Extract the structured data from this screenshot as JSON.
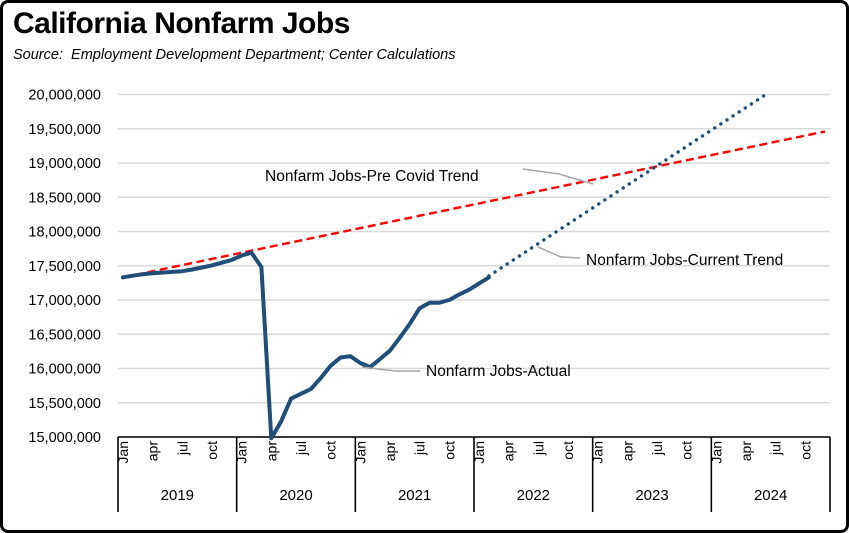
{
  "header": {
    "title": "California Nonfarm Jobs",
    "source": "Source:  Employment Development Department; Center Calculations"
  },
  "colors": {
    "actual_line": "#1F4E79",
    "pre_covid_trend": "#FF0000",
    "current_trend": "#1F4E79",
    "gridline": "#D9D9D9",
    "axis": "#000000",
    "leader_line": "#A6A6A6",
    "background": "#FFFFFF"
  },
  "chart_data": {
    "type": "line",
    "title": "California Nonfarm Jobs",
    "source": "Source:  Employment Development Department; Center Calculations",
    "ylim": [
      15000000,
      20000000
    ],
    "grid": true,
    "y_axis": {
      "ticks": [
        {
          "value": 15000000,
          "label": "15,000,000"
        },
        {
          "value": 15500000,
          "label": "15,500,000"
        },
        {
          "value": 16000000,
          "label": "16,000,000"
        },
        {
          "value": 16500000,
          "label": "16,500,000"
        },
        {
          "value": 17000000,
          "label": "17,000,000"
        },
        {
          "value": 17500000,
          "label": "17,500,000"
        },
        {
          "value": 18000000,
          "label": "18,000,000"
        },
        {
          "value": 18500000,
          "label": "18,500,000"
        },
        {
          "value": 19000000,
          "label": "19,000,000"
        },
        {
          "value": 19500000,
          "label": "19,500,000"
        },
        {
          "value": 20000000,
          "label": "20,000,000"
        }
      ]
    },
    "x_axis": {
      "years": [
        "2019",
        "2020",
        "2021",
        "2022",
        "2023",
        "2024"
      ],
      "month_labels": [
        "Jan",
        "apr",
        "jul",
        "oct"
      ],
      "month_label_positions": [
        0,
        3,
        6,
        9
      ],
      "months_per_year": 12
    },
    "series": [
      {
        "name": "Nonfarm Jobs-Actual",
        "style": "solid",
        "color": "#1F4E79",
        "start_month": "2019-01",
        "end_month": "2022-02",
        "values": [
          17330000,
          17355000,
          17375000,
          17390000,
          17400000,
          17410000,
          17420000,
          17445000,
          17475000,
          17505000,
          17545000,
          17585000,
          17650000,
          17690000,
          17480000,
          14980000,
          15230000,
          15560000,
          15630000,
          15700000,
          15860000,
          16040000,
          16160000,
          16180000,
          16080000,
          16020000,
          16140000,
          16260000,
          16450000,
          16650000,
          16880000,
          16960000,
          16960000,
          17000000,
          17080000,
          17150000,
          17240000,
          17330000
        ]
      },
      {
        "name": "Nonfarm Jobs-Pre Covid Trend",
        "style": "dashed",
        "color": "#FF0000",
        "points": [
          {
            "month": "2019-01",
            "month_index": 0,
            "value": 17330000
          },
          {
            "month": "2024-12",
            "month_index": 71,
            "value": 19460000
          }
        ]
      },
      {
        "name": "Nonfarm Jobs-Current Trend",
        "style": "dotted",
        "color": "#1F4E79",
        "points": [
          {
            "month": "2022-02",
            "month_index": 37,
            "value": 17350000
          },
          {
            "month": "2024-06",
            "month_index": 65,
            "value": 20000000
          }
        ]
      }
    ],
    "annotations": [
      {
        "label": "Nonfarm Jobs-Pre Covid Trend",
        "series_index": 1
      },
      {
        "label": "Nonfarm Jobs-Current Trend",
        "series_index": 2
      },
      {
        "label": "Nonfarm Jobs-Actual",
        "series_index": 0
      }
    ]
  }
}
